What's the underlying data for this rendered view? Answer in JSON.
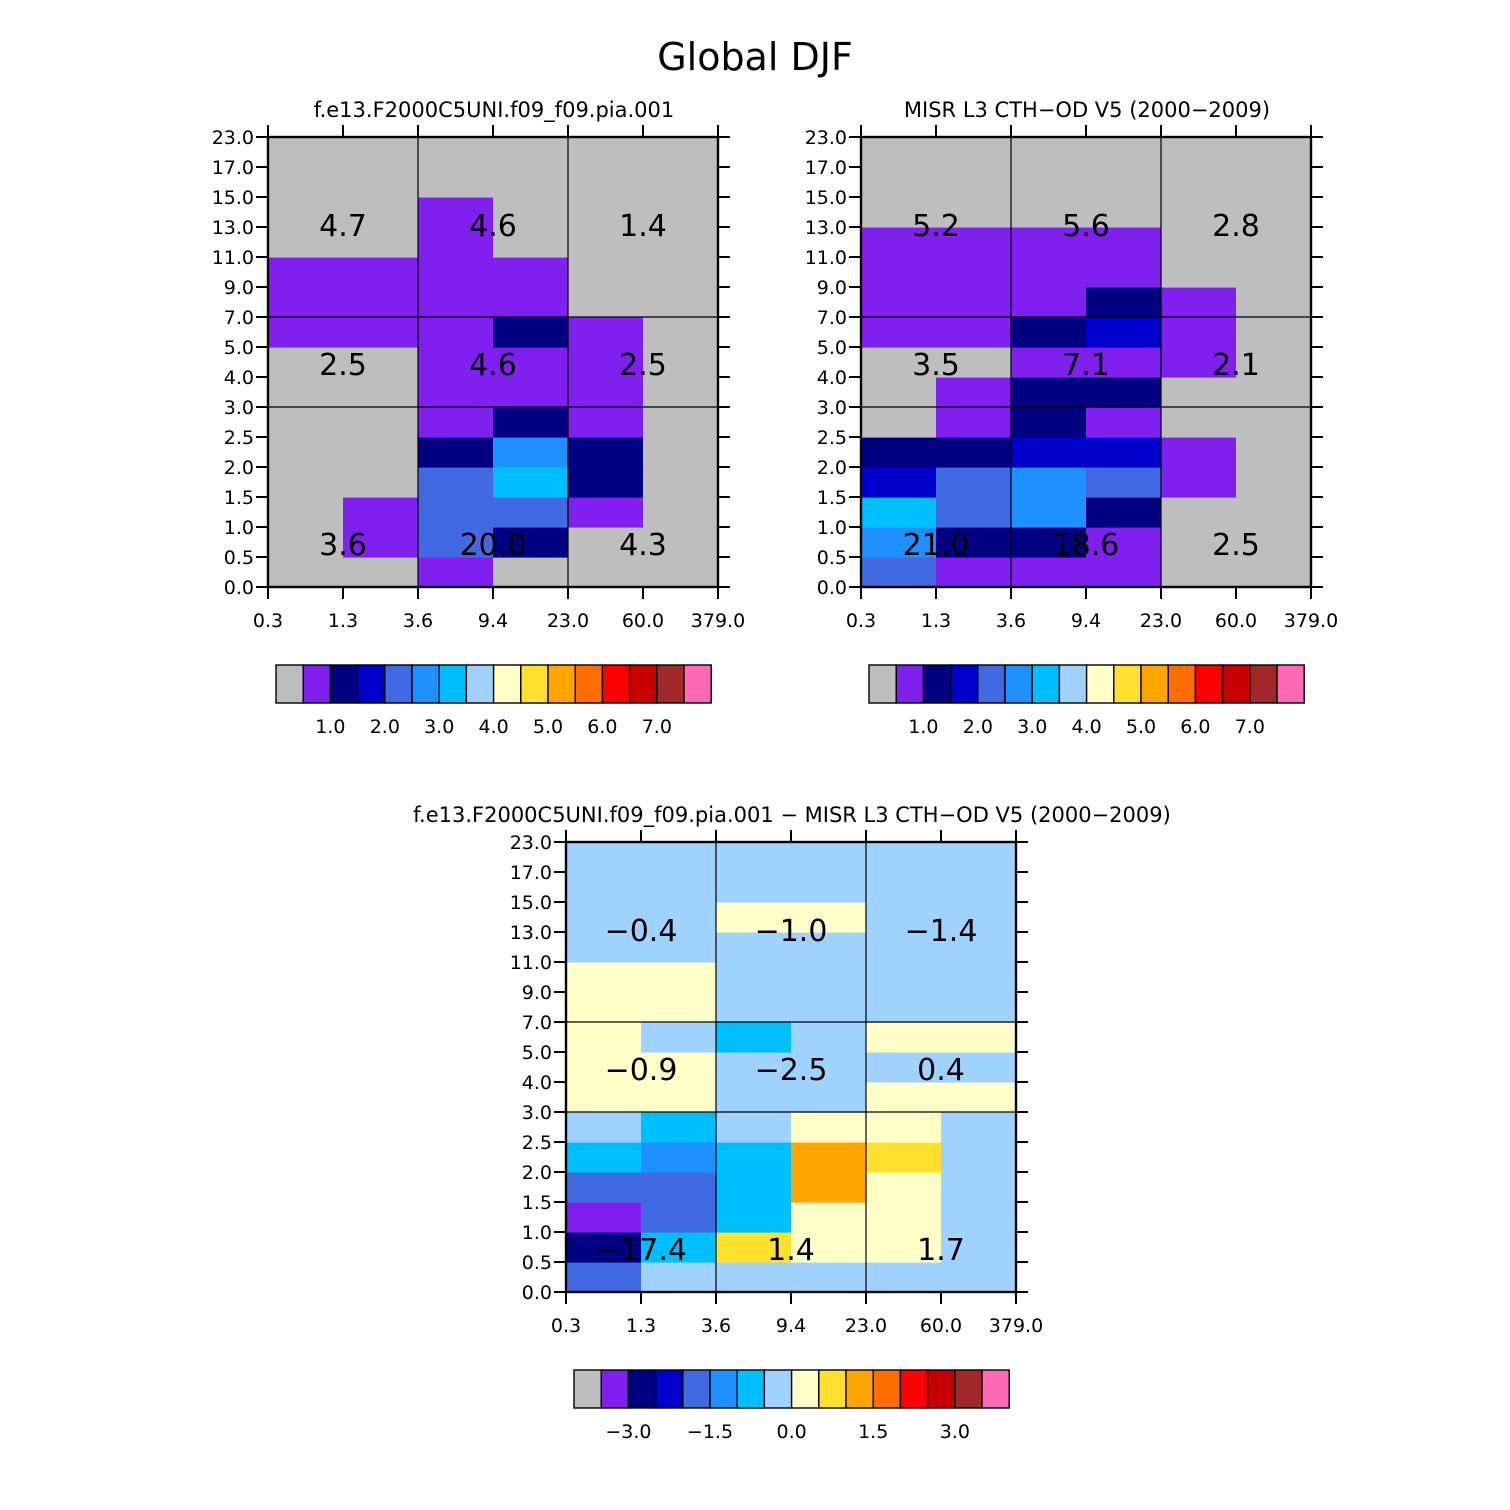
{
  "title": "Global DJF",
  "colors": {
    "palette": [
      "#bebebe",
      "#8020ef",
      "#000080",
      "#0000cd",
      "#4169e1",
      "#1e90ff",
      "#00bfff",
      "#a0d2ff",
      "#ffffc8",
      "#ffe12d",
      "#ffa500",
      "#ff6e00",
      "#ff0000",
      "#c80000",
      "#a02828",
      "#ff69b4"
    ]
  },
  "chart_data": [
    {
      "type": "heatmap",
      "title": "f.e13.F2000C5UNI.f09_f09.pia.001",
      "x_tick_labels": [
        "0.3",
        "1.3",
        "3.6",
        "9.4",
        "23.0",
        "60.0",
        "379.0"
      ],
      "y_tick_labels": [
        "0.0",
        "0.5",
        "1.0",
        "1.5",
        "2.0",
        "2.5",
        "3.0",
        "4.0",
        "5.0",
        "7.0",
        "9.0",
        "11.0",
        "13.0",
        "15.0",
        "17.0",
        "23.0"
      ],
      "cell_color_index": [
        [
          0,
          0,
          1,
          0,
          0,
          0
        ],
        [
          0,
          1,
          4,
          2,
          0,
          0
        ],
        [
          0,
          1,
          4,
          4,
          1,
          0
        ],
        [
          0,
          0,
          4,
          6,
          2,
          0
        ],
        [
          0,
          0,
          2,
          5,
          2,
          0
        ],
        [
          0,
          0,
          1,
          2,
          1,
          0
        ],
        [
          0,
          0,
          1,
          1,
          1,
          0
        ],
        [
          0,
          0,
          1,
          1,
          1,
          0
        ],
        [
          1,
          1,
          1,
          2,
          1,
          0
        ],
        [
          1,
          1,
          1,
          1,
          0,
          0
        ],
        [
          1,
          1,
          1,
          1,
          0,
          0
        ],
        [
          0,
          0,
          1,
          0,
          0,
          0
        ],
        [
          0,
          0,
          1,
          0,
          0,
          0
        ],
        [
          0,
          0,
          0,
          0,
          0,
          0
        ],
        [
          0,
          0,
          0,
          0,
          0,
          0
        ]
      ],
      "box_totals": [
        {
          "value": "3.6",
          "col": 0,
          "row": 0
        },
        {
          "value": "20.0",
          "col": 1,
          "row": 0
        },
        {
          "value": "4.3",
          "col": 2,
          "row": 0
        },
        {
          "value": "2.5",
          "col": 0,
          "row": 1
        },
        {
          "value": "4.6",
          "col": 1,
          "row": 1
        },
        {
          "value": "2.5",
          "col": 2,
          "row": 1
        },
        {
          "value": "4.7",
          "col": 0,
          "row": 2
        },
        {
          "value": "4.6",
          "col": 1,
          "row": 2
        },
        {
          "value": "1.4",
          "col": 2,
          "row": 2
        }
      ],
      "colorbar_labels": [
        "1.0",
        "2.0",
        "3.0",
        "4.0",
        "5.0",
        "6.0",
        "7.0"
      ]
    },
    {
      "type": "heatmap",
      "title": "MISR L3 CTH-OD V5 (2000-2009)",
      "x_tick_labels": [
        "0.3",
        "1.3",
        "3.6",
        "9.4",
        "23.0",
        "60.0",
        "379.0"
      ],
      "y_tick_labels": [
        "0.0",
        "0.5",
        "1.0",
        "1.5",
        "2.0",
        "2.5",
        "3.0",
        "4.0",
        "5.0",
        "7.0",
        "9.0",
        "11.0",
        "13.0",
        "15.0",
        "17.0",
        "23.0"
      ],
      "cell_color_index": [
        [
          4,
          1,
          1,
          1,
          0,
          0
        ],
        [
          5,
          2,
          2,
          1,
          0,
          0
        ],
        [
          6,
          4,
          5,
          2,
          0,
          0
        ],
        [
          3,
          4,
          5,
          4,
          1,
          0
        ],
        [
          2,
          2,
          3,
          3,
          1,
          0
        ],
        [
          0,
          1,
          2,
          1,
          0,
          0
        ],
        [
          0,
          1,
          2,
          2,
          0,
          0
        ],
        [
          0,
          0,
          1,
          1,
          1,
          0
        ],
        [
          1,
          1,
          2,
          3,
          1,
          0
        ],
        [
          1,
          1,
          1,
          2,
          1,
          0
        ],
        [
          1,
          1,
          1,
          1,
          0,
          0
        ],
        [
          1,
          1,
          1,
          1,
          0,
          0
        ],
        [
          0,
          0,
          0,
          0,
          0,
          0
        ],
        [
          0,
          0,
          0,
          0,
          0,
          0
        ],
        [
          0,
          0,
          0,
          0,
          0,
          0
        ]
      ],
      "box_totals": [
        {
          "value": "21.0",
          "col": 0,
          "row": 0
        },
        {
          "value": "18.6",
          "col": 1,
          "row": 0
        },
        {
          "value": "2.5",
          "col": 2,
          "row": 0
        },
        {
          "value": "3.5",
          "col": 0,
          "row": 1
        },
        {
          "value": "7.1",
          "col": 1,
          "row": 1
        },
        {
          "value": "2.1",
          "col": 2,
          "row": 1
        },
        {
          "value": "5.2",
          "col": 0,
          "row": 2
        },
        {
          "value": "5.6",
          "col": 1,
          "row": 2
        },
        {
          "value": "2.8",
          "col": 2,
          "row": 2
        }
      ],
      "colorbar_labels": [
        "1.0",
        "2.0",
        "3.0",
        "4.0",
        "5.0",
        "6.0",
        "7.0"
      ]
    },
    {
      "type": "heatmap",
      "title": "f.e13.F2000C5UNI.f09_f09.pia.001 - MISR L3 CTH-OD V5 (2000-2009)",
      "x_tick_labels": [
        "0.3",
        "1.3",
        "3.6",
        "9.4",
        "23.0",
        "60.0",
        "379.0"
      ],
      "y_tick_labels": [
        "0.0",
        "0.5",
        "1.0",
        "1.5",
        "2.0",
        "2.5",
        "3.0",
        "4.0",
        "5.0",
        "7.0",
        "9.0",
        "11.0",
        "13.0",
        "15.0",
        "17.0",
        "23.0"
      ],
      "cell_color_index": [
        [
          4,
          7,
          7,
          7,
          7,
          7
        ],
        [
          2,
          6,
          9,
          8,
          8,
          7
        ],
        [
          1,
          4,
          6,
          8,
          8,
          7
        ],
        [
          4,
          4,
          6,
          10,
          8,
          7
        ],
        [
          6,
          5,
          6,
          10,
          9,
          7
        ],
        [
          7,
          6,
          7,
          8,
          8,
          7
        ],
        [
          8,
          8,
          7,
          7,
          8,
          8
        ],
        [
          8,
          8,
          7,
          7,
          7,
          7
        ],
        [
          8,
          7,
          6,
          7,
          8,
          8
        ],
        [
          8,
          8,
          7,
          7,
          7,
          7
        ],
        [
          8,
          8,
          7,
          7,
          7,
          7
        ],
        [
          7,
          7,
          7,
          7,
          7,
          7
        ],
        [
          7,
          7,
          8,
          8,
          7,
          7
        ],
        [
          7,
          7,
          7,
          7,
          7,
          7
        ],
        [
          7,
          7,
          7,
          7,
          7,
          7
        ]
      ],
      "box_totals": [
        {
          "value": "-17.4",
          "col": 0,
          "row": 0
        },
        {
          "value": "1.4",
          "col": 1,
          "row": 0
        },
        {
          "value": "1.7",
          "col": 2,
          "row": 0
        },
        {
          "value": "-0.9",
          "col": 0,
          "row": 1
        },
        {
          "value": "-2.5",
          "col": 1,
          "row": 1
        },
        {
          "value": "0.4",
          "col": 2,
          "row": 1
        },
        {
          "value": "-0.4",
          "col": 0,
          "row": 2
        },
        {
          "value": "-1.0",
          "col": 1,
          "row": 2
        },
        {
          "value": "-1.4",
          "col": 2,
          "row": 2
        }
      ],
      "colorbar_labels": [
        "-3.0",
        "-1.5",
        "0.0",
        "1.5",
        "3.0"
      ]
    }
  ]
}
